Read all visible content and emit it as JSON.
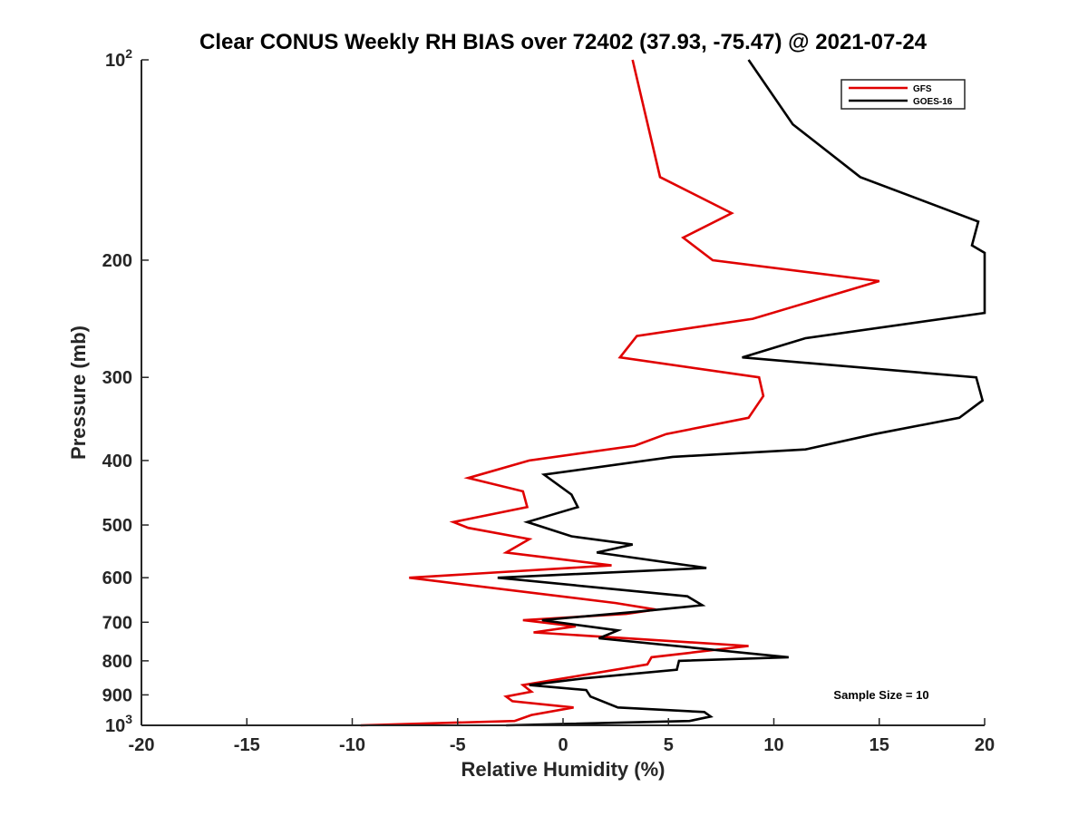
{
  "chart_data": {
    "type": "line",
    "title": "Clear CONUS Weekly RH BIAS over 72402 (37.93, -75.47) @ 2021-07-24",
    "xlabel": "Relative Humidity (%)",
    "ylabel": "Pressure (mb)",
    "xlim": [
      -20,
      20
    ],
    "ylim": [
      100,
      1000
    ],
    "y_scale": "log",
    "y_reversed": true,
    "grid": false,
    "legend_location": "top-right",
    "x_ticks": [
      {
        "value": -20,
        "label": "-20"
      },
      {
        "value": -15,
        "label": "-15"
      },
      {
        "value": -10,
        "label": "-10"
      },
      {
        "value": -5,
        "label": "-5"
      },
      {
        "value": 0,
        "label": "0"
      },
      {
        "value": 5,
        "label": "5"
      },
      {
        "value": 10,
        "label": "10"
      },
      {
        "value": 15,
        "label": "15"
      },
      {
        "value": 20,
        "label": "20"
      }
    ],
    "y_ticks": [
      {
        "value": 100,
        "label": "10",
        "sup": "2"
      },
      {
        "value": 200,
        "label": "200",
        "sup": ""
      },
      {
        "value": 300,
        "label": "300",
        "sup": ""
      },
      {
        "value": 400,
        "label": "400",
        "sup": ""
      },
      {
        "value": 500,
        "label": "500",
        "sup": ""
      },
      {
        "value": 600,
        "label": "600",
        "sup": ""
      },
      {
        "value": 700,
        "label": "700",
        "sup": ""
      },
      {
        "value": 800,
        "label": "800",
        "sup": ""
      },
      {
        "value": 900,
        "label": "900",
        "sup": ""
      },
      {
        "value": 1000,
        "label": "10",
        "sup": "3"
      }
    ],
    "series": [
      {
        "name": "GFS",
        "color": "#e00000",
        "points": [
          {
            "p": 100,
            "x": 3.3
          },
          {
            "p": 150,
            "x": 4.6
          },
          {
            "p": 170,
            "x": 8.0
          },
          {
            "p": 185,
            "x": 5.7
          },
          {
            "p": 200,
            "x": 7.1
          },
          {
            "p": 215,
            "x": 15.0
          },
          {
            "p": 245,
            "x": 9.0
          },
          {
            "p": 260,
            "x": 3.5
          },
          {
            "p": 280,
            "x": 2.7
          },
          {
            "p": 300,
            "x": 9.3
          },
          {
            "p": 320,
            "x": 9.5
          },
          {
            "p": 345,
            "x": 8.8
          },
          {
            "p": 365,
            "x": 4.9
          },
          {
            "p": 380,
            "x": 3.4
          },
          {
            "p": 400,
            "x": -1.6
          },
          {
            "p": 425,
            "x": -4.5
          },
          {
            "p": 445,
            "x": -1.9
          },
          {
            "p": 470,
            "x": -1.7
          },
          {
            "p": 495,
            "x": -5.2
          },
          {
            "p": 505,
            "x": -4.5
          },
          {
            "p": 525,
            "x": -1.6
          },
          {
            "p": 550,
            "x": -2.7
          },
          {
            "p": 575,
            "x": 2.3
          },
          {
            "p": 600,
            "x": -7.3
          },
          {
            "p": 655,
            "x": 2.5
          },
          {
            "p": 670,
            "x": 4.4
          },
          {
            "p": 680,
            "x": 3.0
          },
          {
            "p": 695,
            "x": -1.9
          },
          {
            "p": 710,
            "x": 0.6
          },
          {
            "p": 725,
            "x": -1.4
          },
          {
            "p": 760,
            "x": 8.8
          },
          {
            "p": 790,
            "x": 4.2
          },
          {
            "p": 810,
            "x": 4.0
          },
          {
            "p": 870,
            "x": -1.9
          },
          {
            "p": 890,
            "x": -1.5
          },
          {
            "p": 905,
            "x": -2.7
          },
          {
            "p": 920,
            "x": -2.4
          },
          {
            "p": 940,
            "x": 0.5
          },
          {
            "p": 965,
            "x": -1.5
          },
          {
            "p": 985,
            "x": -2.3
          },
          {
            "p": 1000,
            "x": -9.6
          }
        ]
      },
      {
        "name": "GOES-16",
        "color": "#000000",
        "points": [
          {
            "p": 100,
            "x": 8.8
          },
          {
            "p": 125,
            "x": 10.9
          },
          {
            "p": 150,
            "x": 14.1
          },
          {
            "p": 175,
            "x": 19.7
          },
          {
            "p": 190,
            "x": 19.4
          },
          {
            "p": 195,
            "x": 20.0
          },
          {
            "p": 240,
            "x": 20.0
          },
          {
            "p": 262,
            "x": 11.5
          },
          {
            "p": 280,
            "x": 8.5
          },
          {
            "p": 300,
            "x": 19.6
          },
          {
            "p": 325,
            "x": 19.9
          },
          {
            "p": 345,
            "x": 18.8
          },
          {
            "p": 365,
            "x": 14.8
          },
          {
            "p": 385,
            "x": 11.5
          },
          {
            "p": 395,
            "x": 5.2
          },
          {
            "p": 420,
            "x": -0.9
          },
          {
            "p": 450,
            "x": 0.4
          },
          {
            "p": 470,
            "x": 0.7
          },
          {
            "p": 495,
            "x": -1.7
          },
          {
            "p": 520,
            "x": 0.4
          },
          {
            "p": 535,
            "x": 3.3
          },
          {
            "p": 550,
            "x": 1.6
          },
          {
            "p": 580,
            "x": 6.8
          },
          {
            "p": 600,
            "x": -3.1
          },
          {
            "p": 640,
            "x": 5.9
          },
          {
            "p": 660,
            "x": 6.6
          },
          {
            "p": 675,
            "x": 3.5
          },
          {
            "p": 695,
            "x": -1.0
          },
          {
            "p": 720,
            "x": 2.6
          },
          {
            "p": 740,
            "x": 1.7
          },
          {
            "p": 790,
            "x": 10.7
          },
          {
            "p": 800,
            "x": 5.5
          },
          {
            "p": 825,
            "x": 5.4
          },
          {
            "p": 850,
            "x": 1.0
          },
          {
            "p": 870,
            "x": -1.6
          },
          {
            "p": 885,
            "x": 1.1
          },
          {
            "p": 905,
            "x": 1.3
          },
          {
            "p": 940,
            "x": 2.6
          },
          {
            "p": 955,
            "x": 6.7
          },
          {
            "p": 970,
            "x": 7.0
          },
          {
            "p": 985,
            "x": 6.0
          },
          {
            "p": 1000,
            "x": -2.7
          }
        ]
      }
    ],
    "annotation": "Sample Size = 10"
  }
}
